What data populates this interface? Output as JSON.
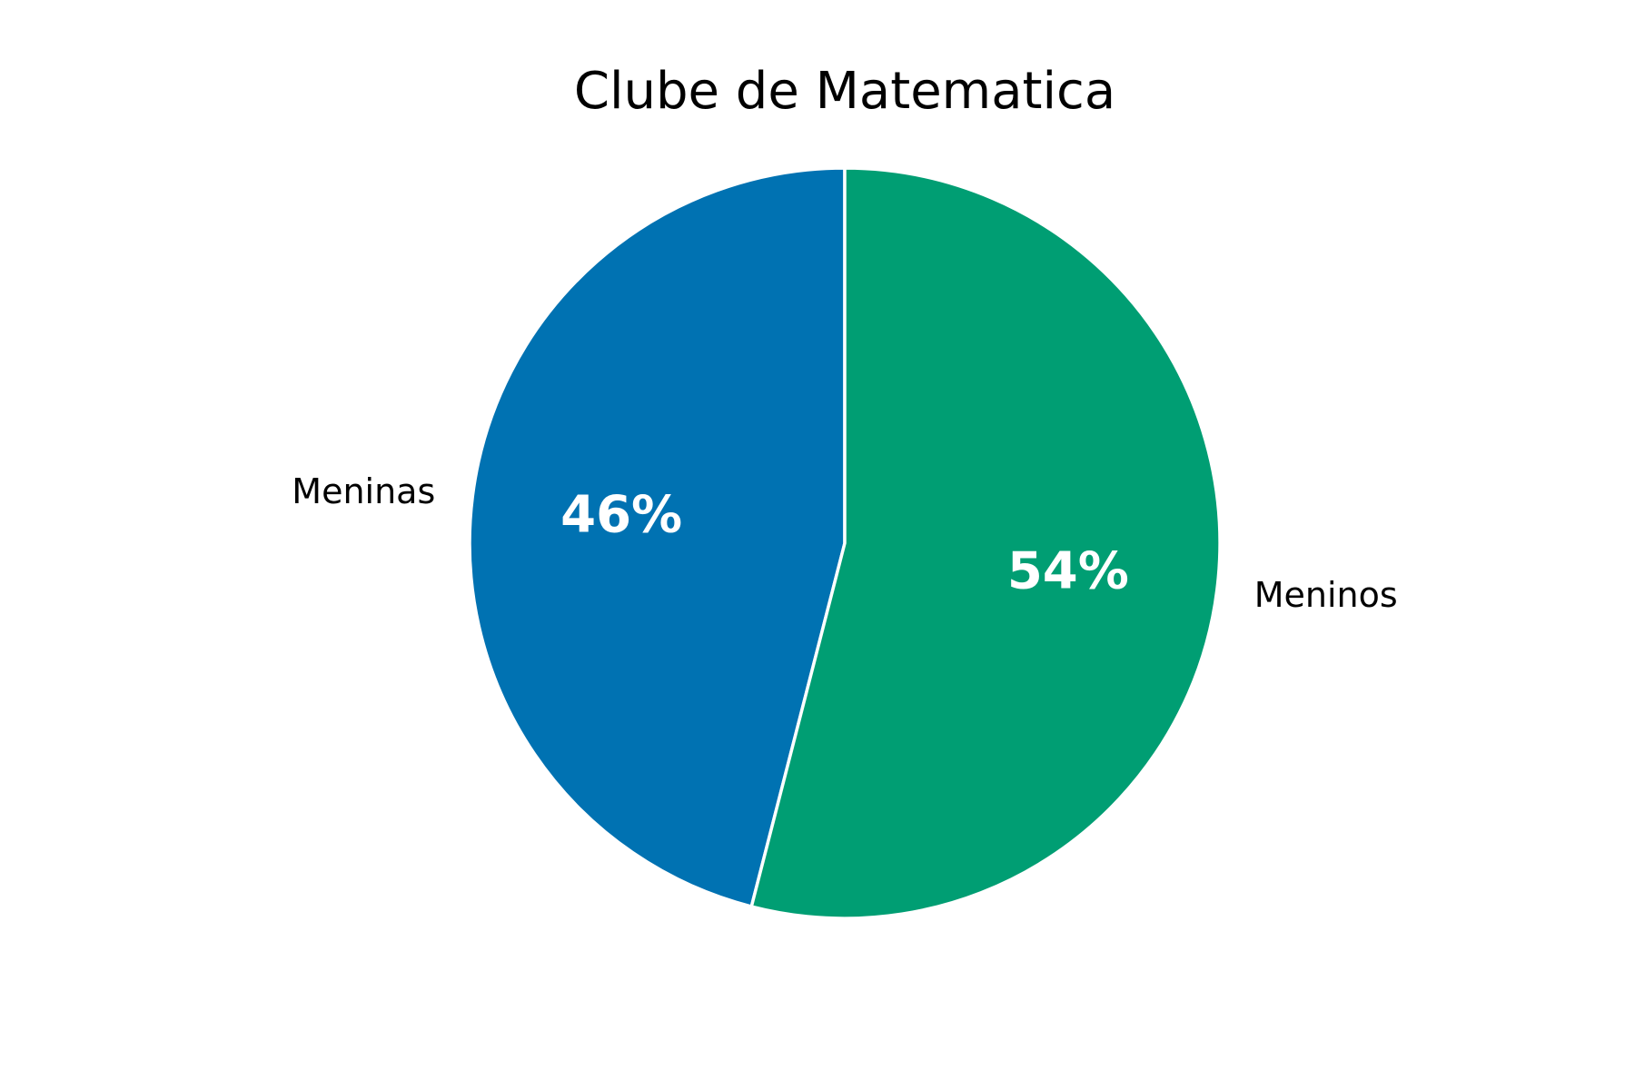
{
  "chart_data": {
    "type": "pie",
    "title": "Clube de Matematica",
    "start_angle_deg": 90,
    "direction": "counterclockwise",
    "slices": [
      {
        "label": "Meninas",
        "value": 46,
        "pct_label": "46%",
        "color": "#0072b2"
      },
      {
        "label": "Meninos",
        "value": 54,
        "pct_label": "54%",
        "color": "#009e73"
      }
    ],
    "edge_color": "#ffffff"
  }
}
